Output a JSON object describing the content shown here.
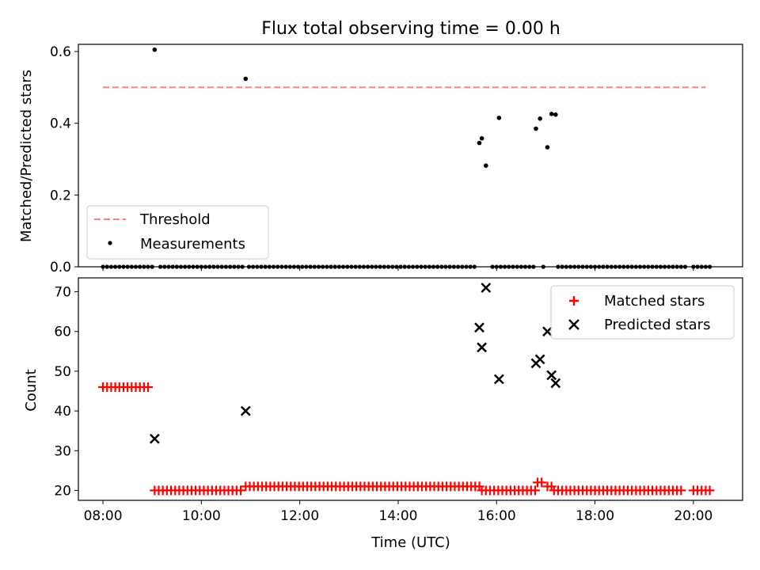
{
  "chart_data": [
    {
      "type": "scatter",
      "title": "Flux total observing time = 0.00 h",
      "xlabel": "",
      "ylabel": "Matched/Predicted stars",
      "ylim": [
        0,
        0.62
      ],
      "xlim_hours": [
        7.5,
        21.0
      ],
      "yticks": [
        0.0,
        0.2,
        0.4,
        0.6
      ],
      "ytick_labels": [
        "0.0",
        "0.2",
        "0.4",
        "0.6"
      ],
      "grid": false,
      "legend_position": "lower-left",
      "threshold": {
        "name": "Threshold",
        "value": 0.5,
        "x_start": "08:00",
        "x_end": "20:15",
        "color": "#ff7f7f"
      },
      "series": [
        {
          "name": "Measurements",
          "color": "#000000",
          "points": [
            {
              "x": "09:03",
              "y": 0.605
            },
            {
              "x": "10:54",
              "y": 0.524
            },
            {
              "x": "15:39",
              "y": 0.345
            },
            {
              "x": "15:42",
              "y": 0.358
            },
            {
              "x": "15:47",
              "y": 0.282
            },
            {
              "x": "16:03",
              "y": 0.415
            },
            {
              "x": "16:48",
              "y": 0.385
            },
            {
              "x": "16:53",
              "y": 0.413
            },
            {
              "x": "17:02",
              "y": 0.333
            },
            {
              "x": "17:07",
              "y": 0.426
            },
            {
              "x": "17:12",
              "y": 0.424
            }
          ],
          "zero_intervals": [
            [
              "08:00",
              "09:00"
            ],
            [
              "09:10",
              "10:50"
            ],
            [
              "10:58",
              "15:35"
            ],
            [
              "15:55",
              "16:00"
            ],
            [
              "16:05",
              "16:45"
            ],
            [
              "16:57",
              "16:59"
            ],
            [
              "17:15",
              "19:50"
            ],
            [
              "20:00",
              "20:20"
            ]
          ]
        }
      ]
    },
    {
      "type": "scatter",
      "title": "",
      "xlabel": "Time (UTC)",
      "ylabel": "Count",
      "ylim": [
        17.5,
        73.5
      ],
      "xlim_hours": [
        7.5,
        21.0
      ],
      "yticks": [
        20,
        30,
        40,
        50,
        60,
        70
      ],
      "ytick_labels": [
        "20",
        "30",
        "40",
        "50",
        "60",
        "70"
      ],
      "xticks": [
        "08:00",
        "10:00",
        "12:00",
        "14:00",
        "16:00",
        "18:00",
        "20:00"
      ],
      "grid": false,
      "legend_position": "top-right",
      "series": [
        {
          "name": "Matched stars",
          "color": "#ff0000",
          "marker": "plus",
          "segments": [
            {
              "from": "08:00",
              "to": "08:55",
              "y": 46
            },
            {
              "from": "09:03",
              "to": "10:48",
              "y": 20
            },
            {
              "from": "10:54",
              "to": "15:40",
              "y": 21
            },
            {
              "from": "15:42",
              "to": "16:48",
              "y": 20
            },
            {
              "from": "16:50",
              "to": "16:58",
              "y": 22
            },
            {
              "from": "17:02",
              "to": "17:07",
              "y": 21
            },
            {
              "from": "17:10",
              "to": "19:48",
              "y": 20
            },
            {
              "from": "20:00",
              "to": "20:20",
              "y": 20
            }
          ]
        },
        {
          "name": "Predicted stars",
          "color": "#000000",
          "marker": "x",
          "points": [
            {
              "x": "09:03",
              "y": 33
            },
            {
              "x": "10:54",
              "y": 40
            },
            {
              "x": "15:39",
              "y": 61
            },
            {
              "x": "15:42",
              "y": 56
            },
            {
              "x": "15:47",
              "y": 71
            },
            {
              "x": "16:03",
              "y": 48
            },
            {
              "x": "16:48",
              "y": 52
            },
            {
              "x": "16:53",
              "y": 53
            },
            {
              "x": "17:02",
              "y": 60
            },
            {
              "x": "17:07",
              "y": 49
            },
            {
              "x": "17:12",
              "y": 47
            }
          ]
        }
      ]
    }
  ]
}
